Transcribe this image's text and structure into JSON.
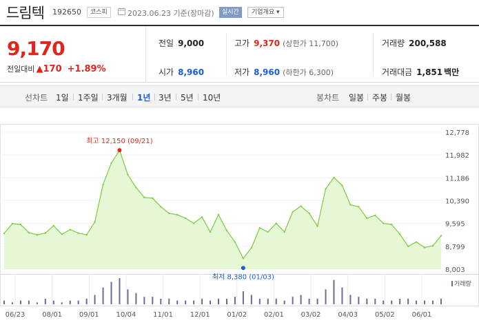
{
  "header": {
    "stock_name": "드림텍",
    "stock_code": "192650",
    "market_badge": "코스피",
    "date_text": "2023.06.23 기준(장마감)",
    "realtime_badge": "실시간",
    "corp_overview": "기업개요 ▾"
  },
  "price": {
    "current": "9,170",
    "change_label": "전일대비",
    "change_arrow": "▲",
    "change_value": "170",
    "change_rate": "+1.89%"
  },
  "quote": {
    "prev_close_label": "전일",
    "prev_close": "9,000",
    "high_label": "고가",
    "high": "9,370",
    "upper_limit": "(상한가 11,700)",
    "volume_label": "거래량",
    "volume": "200,588",
    "open_label": "시가",
    "open": "8,960",
    "low_label": "저가",
    "low": "8,960",
    "lower_limit": "(하한가 6,300)",
    "amount_label": "거래대금",
    "amount": "1,851",
    "amount_unit": "백만"
  },
  "periods": {
    "line_label": "선차트",
    "line_items": [
      "1일",
      "1주일",
      "3개월",
      "1년",
      "3년",
      "5년",
      "10년"
    ],
    "selected": "1년",
    "candle_label": "봉차트",
    "candle_items": [
      "일봉",
      "주봉",
      "월봉"
    ]
  },
  "colors": {
    "up": "#e1251b",
    "down": "#1a5cd5",
    "line": "#7ccc3c",
    "fill": "#e5f7d4",
    "volume_bar": "#6a6a9a"
  },
  "chart_data": {
    "type": "area",
    "ylim": [
      8003,
      12778
    ],
    "y_ticks": [
      "12,778",
      "11,982",
      "11,186",
      "10,390",
      "9,595",
      "8,799",
      "8,003"
    ],
    "x_ticks": [
      "06/23",
      "08/01",
      "09/01",
      "10/04",
      "11/01",
      "12/01",
      "01/02",
      "02/01",
      "03/02",
      "04/03",
      "05/02",
      "06/01"
    ],
    "high_annotation": "최고 12,150 (09/21)",
    "low_annotation": "최저 8,380 (01/03)",
    "volume_legend": "거래량",
    "x": [
      "06/23",
      "06/30",
      "07/07",
      "07/14",
      "07/21",
      "07/28",
      "08/04",
      "08/11",
      "08/18",
      "08/25",
      "09/01",
      "09/08",
      "09/14",
      "09/18",
      "09/21",
      "09/27",
      "10/04",
      "10/11",
      "10/18",
      "10/25",
      "11/01",
      "11/08",
      "11/15",
      "11/22",
      "11/29",
      "12/06",
      "12/13",
      "12/20",
      "12/27",
      "01/03",
      "01/10",
      "01/17",
      "01/24",
      "01/31",
      "02/07",
      "02/14",
      "02/21",
      "02/28",
      "03/07",
      "03/14",
      "03/21",
      "03/28",
      "04/04",
      "04/11",
      "04/18",
      "04/25",
      "05/02",
      "05/09",
      "05/16",
      "05/23",
      "05/30",
      "06/06",
      "06/13",
      "06/23"
    ],
    "values": [
      9250,
      9590,
      9560,
      9280,
      9200,
      9260,
      9520,
      9220,
      9380,
      9260,
      9200,
      9650,
      10950,
      11700,
      12150,
      11300,
      10850,
      10500,
      10480,
      10180,
      9950,
      9900,
      9780,
      9600,
      9820,
      9300,
      9900,
      9350,
      8950,
      8380,
      8750,
      9440,
      9300,
      9600,
      9300,
      10000,
      10200,
      9950,
      9500,
      10800,
      11200,
      10920,
      10250,
      10180,
      9780,
      9880,
      9600,
      9560,
      9220,
      8800,
      8950,
      8760,
      8820,
      9170
    ],
    "volume": [
      2,
      1,
      2,
      2,
      1,
      3,
      2,
      1,
      2,
      2,
      3,
      5,
      9,
      12,
      14,
      8,
      6,
      4,
      4,
      3,
      3,
      2,
      2,
      2,
      3,
      2,
      3,
      3,
      4,
      7,
      5,
      3,
      3,
      3,
      2,
      4,
      5,
      3,
      3,
      8,
      13,
      9,
      5,
      4,
      3,
      3,
      2,
      2,
      3,
      3,
      2,
      2,
      2,
      3
    ]
  }
}
